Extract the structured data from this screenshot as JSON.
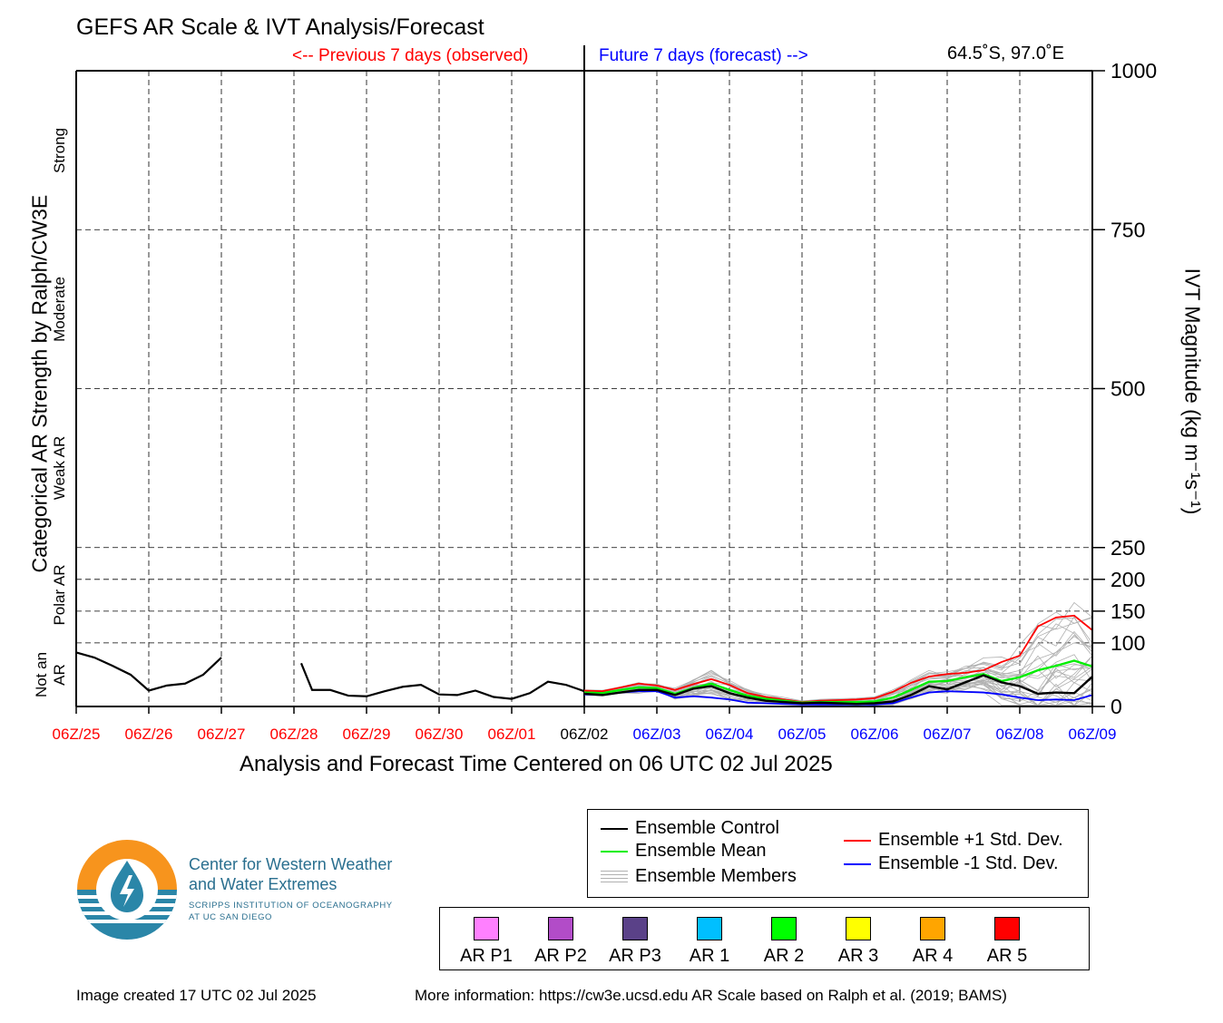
{
  "title": "GEFS AR Scale & IVT Analysis/Forecast",
  "previous_label": "<-- Previous 7 days (observed)",
  "future_label": "Future 7 days (forecast) -->",
  "location": "64.5˚S, 97.0˚E",
  "xlabel": "Analysis and Forecast Time Centered on 06 UTC 02 Jul 2025",
  "ylabel_left": "Categorical AR Strength by Ralph/CW3E",
  "ylabel_right": "IVT Magnitude (kg m⁻¹s⁻¹)",
  "categories_left": [
    {
      "label": "Strong",
      "lines": [
        "Strong"
      ]
    },
    {
      "label": "Moderate",
      "lines": [
        "Moderate"
      ]
    },
    {
      "label": "Weak AR",
      "lines": [
        "Weak AR"
      ]
    },
    {
      "label": "Polar AR",
      "lines": [
        "Polar AR"
      ]
    },
    {
      "label": "Not an AR",
      "lines": [
        "Not an",
        "AR"
      ]
    }
  ],
  "colors": {
    "observed": "#ff0000",
    "forecast": "#0000ff",
    "control": "#000000",
    "mean": "#00ee00",
    "plus1": "#ff0000",
    "minus1": "#0000ff",
    "members": "#b0b0b0"
  },
  "chart_data": {
    "type": "line",
    "xlabel": "Analysis and Forecast Time Centered on 06 UTC 02 Jul 2025",
    "ylabel": "IVT Magnitude (kg m⁻¹s⁻¹)",
    "x_ticks": [
      "06Z/25",
      "06Z/26",
      "06Z/27",
      "06Z/28",
      "06Z/29",
      "06Z/30",
      "06Z/01",
      "06Z/02",
      "06Z/03",
      "06Z/04",
      "06Z/05",
      "06Z/06",
      "06Z/07",
      "06Z/08",
      "06Z/09"
    ],
    "x_tick_status": [
      "observed",
      "observed",
      "observed",
      "observed",
      "observed",
      "observed",
      "observed",
      "current",
      "forecast",
      "forecast",
      "forecast",
      "forecast",
      "forecast",
      "forecast",
      "forecast"
    ],
    "xlim_days": [
      -7,
      7
    ],
    "y_ticks": [
      0,
      100,
      150,
      200,
      250,
      500,
      750,
      1000
    ],
    "ylim": [
      0,
      1000
    ],
    "y_category_bounds": [
      100,
      250,
      500,
      750
    ],
    "grid": true,
    "observed": {
      "name": "observed",
      "segments": [
        [
          [
            -7,
            85
          ],
          [
            -6.75,
            77
          ],
          [
            -6.5,
            64
          ],
          [
            -6.25,
            50
          ],
          [
            -6,
            25
          ],
          [
            -5.75,
            33
          ],
          [
            -5.5,
            36
          ],
          [
            -5.25,
            50
          ],
          [
            -5,
            77
          ]
        ],
        [
          [
            -3.9,
            68
          ],
          [
            -3.75,
            26
          ],
          [
            -3.5,
            26
          ],
          [
            -3.25,
            17
          ],
          [
            -3,
            16
          ],
          [
            -2.75,
            24
          ],
          [
            -2.5,
            31
          ],
          [
            -2.25,
            34
          ],
          [
            -2,
            19
          ],
          [
            -1.75,
            18
          ],
          [
            -1.5,
            25
          ],
          [
            -1.25,
            15
          ],
          [
            -1,
            12
          ],
          [
            -0.75,
            21
          ],
          [
            -0.5,
            39
          ],
          [
            -0.25,
            34
          ],
          [
            0,
            24
          ]
        ]
      ]
    },
    "series": [
      {
        "name": "Ensemble Control",
        "key": "control",
        "x": [
          0,
          0.25,
          0.5,
          0.75,
          1,
          1.25,
          1.5,
          1.75,
          2,
          2.25,
          2.5,
          2.75,
          3,
          3.25,
          3.5,
          3.75,
          4,
          4.25,
          4.5,
          4.75,
          5,
          5.25,
          5.5,
          5.75,
          6,
          6.25,
          6.5,
          6.75,
          7
        ],
        "y": [
          20,
          18,
          22,
          26,
          26,
          18,
          28,
          32,
          21,
          14,
          9,
          7,
          5,
          6,
          5,
          4,
          5,
          8,
          18,
          32,
          27,
          38,
          49,
          38,
          32,
          20,
          22,
          21,
          47
        ]
      },
      {
        "name": "Ensemble Mean",
        "key": "mean",
        "x": [
          0,
          0.25,
          0.5,
          0.75,
          1,
          1.25,
          1.5,
          1.75,
          2,
          2.25,
          2.5,
          2.75,
          3,
          3.25,
          3.5,
          3.75,
          4,
          4.25,
          4.5,
          4.75,
          5,
          5.25,
          5.5,
          5.75,
          6,
          6.25,
          6.5,
          6.75,
          7
        ],
        "y": [
          22,
          21,
          26,
          30,
          29,
          20,
          29,
          36,
          26,
          17,
          12,
          9,
          6,
          7,
          7,
          7,
          8,
          14,
          26,
          39,
          40,
          46,
          51,
          40,
          46,
          57,
          64,
          72,
          63
        ]
      },
      {
        "name": "Ensemble +1 Std. Dev.",
        "key": "plus1",
        "x": [
          0,
          0.25,
          0.5,
          0.75,
          1,
          1.25,
          1.5,
          1.75,
          2,
          2.25,
          2.5,
          2.75,
          3,
          3.25,
          3.5,
          3.75,
          4,
          4.25,
          4.5,
          4.75,
          5,
          5.25,
          5.5,
          5.75,
          6,
          6.25,
          6.5,
          6.75,
          7
        ],
        "y": [
          25,
          24,
          30,
          36,
          33,
          26,
          35,
          43,
          34,
          21,
          15,
          11,
          7,
          9,
          10,
          11,
          13,
          23,
          37,
          47,
          51,
          53,
          57,
          70,
          80,
          126,
          140,
          143,
          120
        ]
      },
      {
        "name": "Ensemble -1 Std. Dev.",
        "key": "minus1",
        "x": [
          0,
          0.25,
          0.5,
          0.75,
          1,
          1.25,
          1.5,
          1.75,
          2,
          2.25,
          2.5,
          2.75,
          3,
          3.25,
          3.5,
          3.75,
          4,
          4.25,
          4.5,
          4.75,
          5,
          5.25,
          5.5,
          5.75,
          6,
          6.25,
          6.5,
          6.75,
          7
        ],
        "y": [
          19,
          18,
          22,
          24,
          24,
          14,
          16,
          14,
          11,
          6,
          5,
          4,
          3,
          3,
          3,
          3,
          3,
          5,
          14,
          22,
          24,
          23,
          22,
          19,
          14,
          10,
          11,
          10,
          18
        ]
      }
    ]
  },
  "legend": {
    "control": "Ensemble Control",
    "mean": "Ensemble Mean",
    "members": "Ensemble Members",
    "plus1": "Ensemble +1 Std. Dev.",
    "minus1": "Ensemble -1 Std. Dev."
  },
  "ar_scale": [
    {
      "label": "AR P1",
      "color": "#ff80ff"
    },
    {
      "label": "AR P2",
      "color": "#b24cc8"
    },
    {
      "label": "AR P3",
      "color": "#5a4188"
    },
    {
      "label": "AR 1",
      "color": "#00bfff"
    },
    {
      "label": "AR 2",
      "color": "#00ff00"
    },
    {
      "label": "AR 3",
      "color": "#ffff00"
    },
    {
      "label": "AR 4",
      "color": "#ffa500"
    },
    {
      "label": "AR 5",
      "color": "#ff0000"
    }
  ],
  "logo": {
    "name_line1": "Center for Western Weather",
    "name_line2": "and Water Extremes",
    "sub_line1": "SCRIPPS INSTITUTION OF OCEANOGRAPHY",
    "sub_line2": "AT UC SAN DIEGO"
  },
  "footer": {
    "created": "Image created 17 UTC 02 Jul 2025",
    "more_info": "More information: https://cw3e.ucsd.edu AR Scale based on Ralph et al. (2019; BAMS)"
  }
}
